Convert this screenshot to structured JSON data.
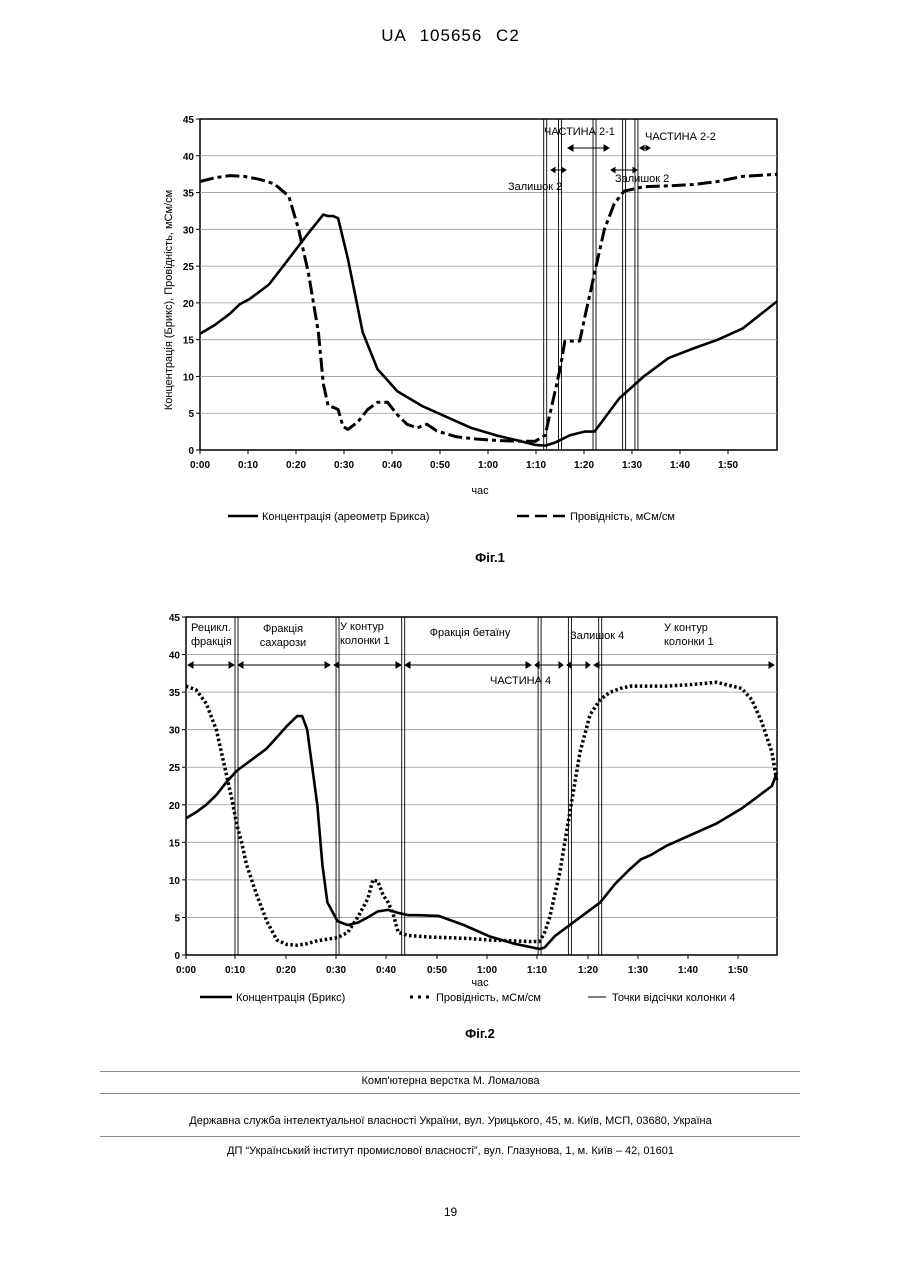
{
  "header": {
    "doc_id": "UA   105656   C2"
  },
  "figure1": {
    "caption": "Фіг.1",
    "ylabel": "Концентрація (Брикс), Провідність, мСм/см",
    "xlabel": "час",
    "legend": {
      "line1": "Концентрація (ареометр Брикса)",
      "line2": "Провідність, мСм/см"
    },
    "annotations": {
      "part1": "ЧАСТИНА 2-1",
      "part2": "ЧАСТИНА 2-2",
      "rem1": "Залишок 2",
      "rem2": "Залишок 2"
    }
  },
  "figure2": {
    "caption": "Фіг.2",
    "xlabel": "час",
    "legend": {
      "line1": "Концентрація (Брикс)",
      "line2": "Провідність, мСм/см",
      "line3": "Точки відсічки колонки 4"
    },
    "zones": {
      "z1a": "Рецикл.",
      "z1b": "фракція",
      "z2a": "Фракція",
      "z2b": "сахарози",
      "z3a": "У контур",
      "z3b": "колонки 1",
      "z4": "Фракція бетаїну",
      "z5": "ЧАСТИНА 4",
      "z6": "Залишок 4",
      "z7a": "У контур",
      "z7b": "колонки 1"
    }
  },
  "chart_data": [
    {
      "type": "line",
      "title": "Фіг.1",
      "xlabel": "час",
      "ylabel": "Концентрація (Брикс), Провідність, мСм/см",
      "xlim_min": [
        0,
        117
      ],
      "ylim": [
        0,
        45
      ],
      "x_ticks": [
        "0:00",
        "0:10",
        "0:20",
        "0:30",
        "0:40",
        "0:50",
        "1:00",
        "1:10",
        "1:20",
        "1:30",
        "1:40",
        "1:50"
      ],
      "y_ticks": [
        0,
        5,
        10,
        15,
        20,
        25,
        30,
        35,
        40,
        45
      ],
      "grid": "horizontal",
      "legend": "bottom",
      "series": [
        {
          "name": "Концентрація (ареометр Брикса)",
          "style": "solid",
          "x_min": [
            0,
            3,
            6,
            8,
            10,
            14,
            18,
            22,
            25,
            26,
            27,
            28,
            30,
            33,
            36,
            40,
            45,
            50,
            55,
            60,
            65,
            68,
            70,
            72,
            75,
            78,
            80,
            85,
            90,
            95,
            100,
            105,
            110,
            117
          ],
          "y": [
            15.8,
            17,
            18.5,
            19.8,
            20.5,
            22.5,
            26,
            29.5,
            32,
            31.8,
            31.8,
            31.5,
            26,
            16,
            11,
            8,
            6,
            4.5,
            3,
            2,
            1.2,
            0.7,
            0.6,
            1,
            2,
            2.5,
            2.5,
            7,
            10,
            12.5,
            13.8,
            15,
            16.5,
            20.2
          ]
        },
        {
          "name": "Провідність, мСм/см",
          "style": "dashed",
          "x_min": [
            0,
            3,
            6,
            9,
            12,
            15,
            18,
            20,
            22,
            24,
            25,
            26,
            27,
            28,
            29,
            30,
            32,
            34,
            36,
            38,
            40,
            42,
            44,
            46,
            48,
            52,
            56,
            60,
            64,
            68,
            70,
            71,
            72,
            73,
            74,
            75,
            76,
            77,
            78,
            80,
            82,
            84,
            86,
            88,
            90,
            95,
            100,
            105,
            110,
            117
          ],
          "y": [
            36.5,
            37,
            37.3,
            37.2,
            36.8,
            36.2,
            34.5,
            30,
            24,
            16,
            9,
            6,
            5.8,
            5.5,
            3.2,
            2.8,
            3.8,
            5.5,
            6.5,
            6.5,
            4.8,
            3.5,
            3,
            3.5,
            2.6,
            1.8,
            1.5,
            1.3,
            1.2,
            1.2,
            2,
            5,
            8,
            11,
            14.8,
            14.8,
            14.8,
            14.8,
            18,
            24,
            30,
            33.5,
            35.2,
            35.5,
            35.8,
            35.9,
            36.1,
            36.5,
            37.2,
            37.5
          ]
        }
      ],
      "vertical_markers_min": [
        70,
        73,
        80,
        86,
        88.5
      ],
      "annotations": [
        "ЧАСТИНА 2-1",
        "ЧАСТИНА 2-2",
        "Залишок 2",
        "Залишок 2"
      ]
    },
    {
      "type": "line",
      "title": "Фіг.2",
      "xlabel": "час",
      "xlim_min": [
        0,
        117
      ],
      "ylim": [
        0,
        45
      ],
      "x_ticks": [
        "0:00",
        "0:10",
        "0:20",
        "0:30",
        "0:40",
        "0:50",
        "1:00",
        "1:10",
        "1:20",
        "1:30",
        "1:40",
        "1:50"
      ],
      "y_ticks": [
        0,
        5,
        10,
        15,
        20,
        25,
        30,
        35,
        40,
        45
      ],
      "grid": "horizontal",
      "legend": "bottom",
      "series": [
        {
          "name": "Концентрація (Брикс)",
          "style": "solid",
          "x_min": [
            0,
            2,
            4,
            6,
            8,
            10,
            12,
            14,
            16,
            18,
            20,
            22,
            23,
            24,
            26,
            27,
            28,
            30,
            32,
            34,
            36,
            38,
            40,
            42,
            44,
            46,
            50,
            55,
            60,
            65,
            70,
            71,
            73,
            75,
            78,
            80,
            82,
            85,
            88,
            90,
            92,
            95,
            100,
            105,
            110,
            113,
            116,
            117
          ],
          "y": [
            18.2,
            19,
            20,
            21.3,
            23,
            24.5,
            25.5,
            26.5,
            27.5,
            29,
            30.5,
            31.8,
            31.8,
            30,
            20,
            12,
            7,
            4.5,
            4,
            4.3,
            5,
            5.8,
            6,
            5.6,
            5.3,
            5.3,
            5.2,
            4,
            2.5,
            1.5,
            0.8,
            1,
            2.5,
            3.5,
            5,
            6,
            7,
            9.5,
            11.5,
            12.7,
            13.3,
            14.5,
            16,
            17.5,
            19.5,
            21,
            22.5,
            24.3
          ]
        },
        {
          "name": "Провідність, мСм/см",
          "style": "dotted",
          "x_min": [
            0,
            2,
            4,
            6,
            7,
            8,
            9,
            10,
            11,
            12,
            14,
            16,
            18,
            20,
            22,
            24,
            26,
            28,
            30,
            32,
            34,
            36,
            37,
            38,
            39,
            40,
            41,
            42,
            44,
            48,
            52,
            56,
            60,
            64,
            68,
            70,
            71,
            72,
            73,
            74,
            75,
            76,
            77,
            78,
            80,
            82,
            84,
            86,
            88,
            90,
            95,
            100,
            105,
            110,
            112,
            114,
            116,
            117
          ],
          "y": [
            35.8,
            35.3,
            33.5,
            30,
            27,
            24,
            21,
            17.5,
            15,
            12,
            8,
            4.5,
            2,
            1.4,
            1.3,
            1.5,
            1.9,
            2.1,
            2.3,
            3,
            5,
            7.5,
            10,
            9.8,
            8,
            7,
            5.5,
            3,
            2.6,
            2.4,
            2.3,
            2.2,
            2,
            1.9,
            1.8,
            1.8,
            3,
            5,
            8,
            11,
            15,
            19,
            23,
            27,
            32,
            34,
            35,
            35.5,
            35.8,
            35.8,
            35.8,
            36,
            36.3,
            35.5,
            34,
            31,
            27,
            23
          ]
        }
      ],
      "vertical_markers_min": [
        10,
        30,
        43,
        70,
        76,
        82
      ],
      "annotations": [
        "Рецикл. фракція",
        "Фракція сахарози",
        "У контур колонки 1",
        "Фракція бетаїну",
        "ЧАСТИНА 4",
        "Залишок 4",
        "У контур колонки 1"
      ]
    }
  ],
  "footer": {
    "line1": "Комп'ютерна верстка М. Ломалова",
    "line2": "Державна служба інтелектуальної власності України, вул. Урицького, 45, м. Київ, МСП, 03680, Україна",
    "line3": "ДП “Український інститут промислової власності”, вул. Глазунова, 1, м. Київ – 42, 01601",
    "page": "19"
  }
}
